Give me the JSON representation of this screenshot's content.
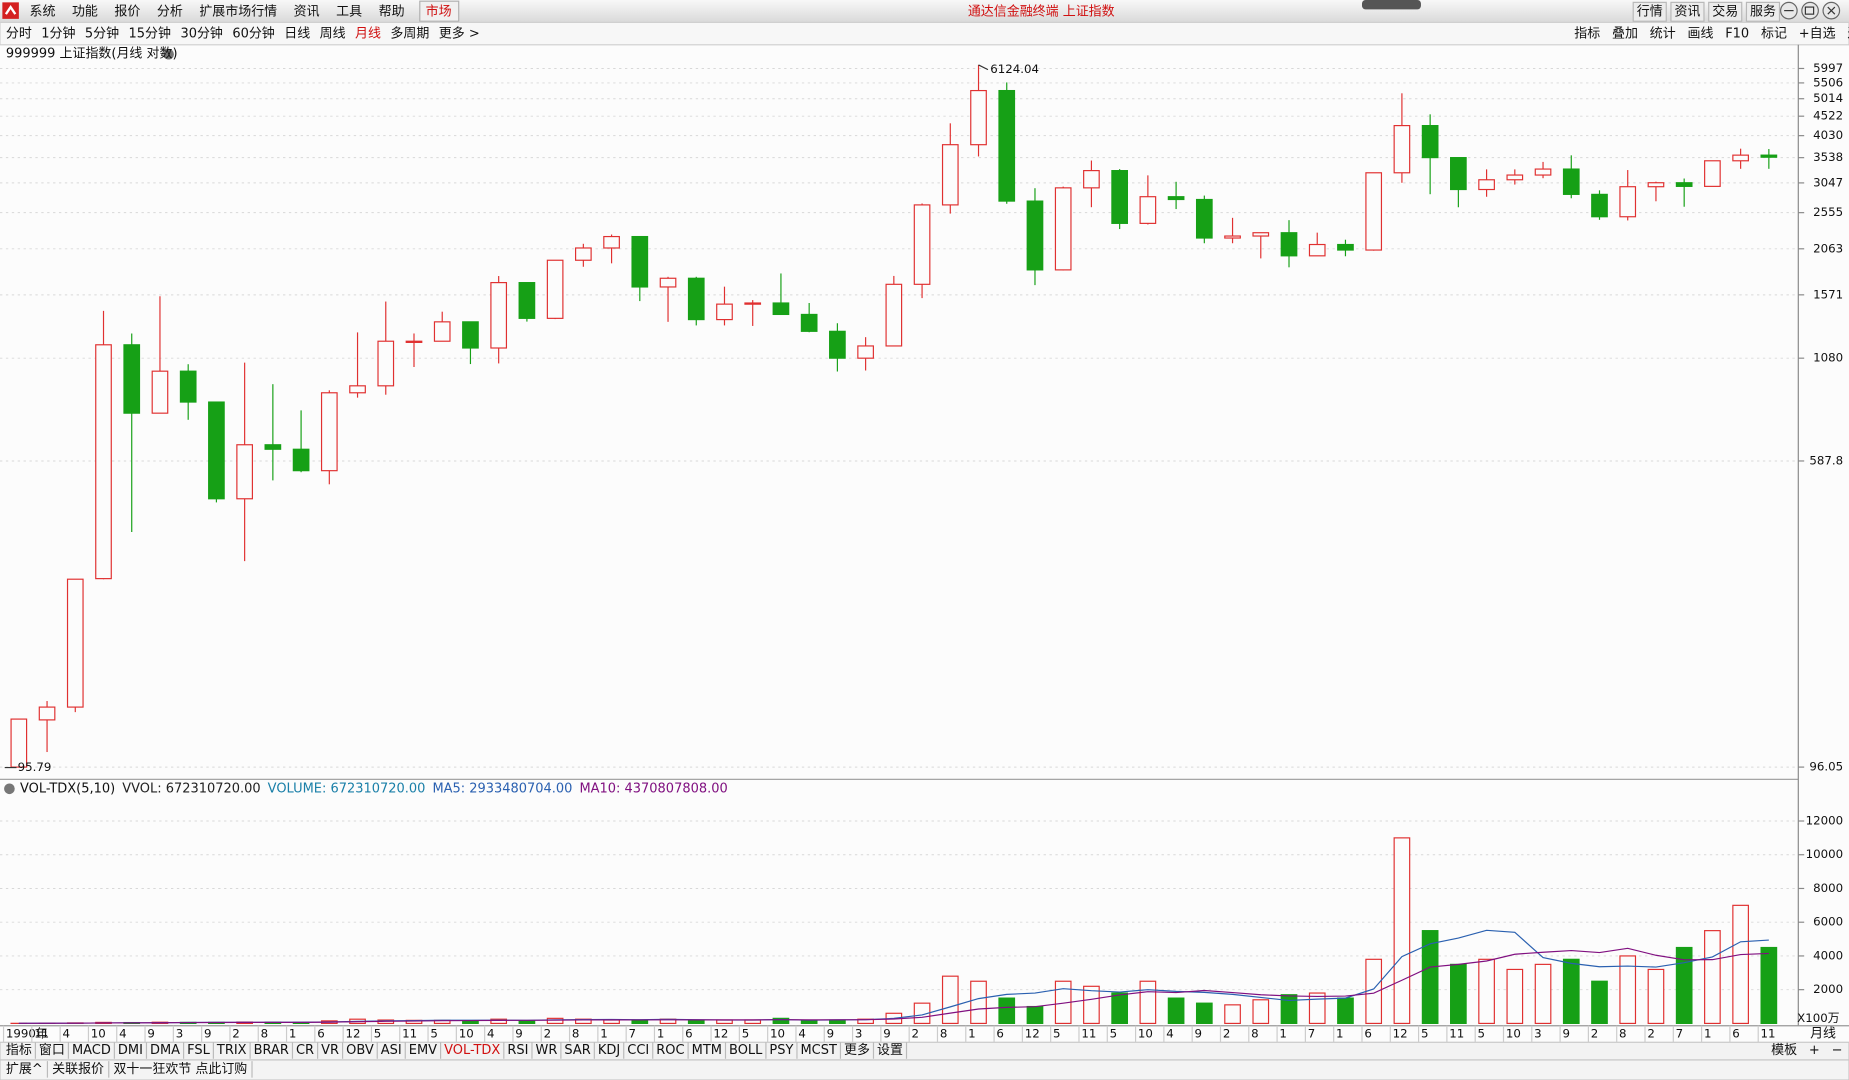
{
  "app": {
    "title": "通达信金融终端 上证指数",
    "menu": [
      "系统",
      "功能",
      "报价",
      "分析",
      "扩展市场行情",
      "资讯",
      "工具",
      "帮助"
    ],
    "market_tab": "市场",
    "top_right": [
      "行情",
      "资讯",
      "交易",
      "服务"
    ],
    "periods": [
      "分时",
      "1分钟",
      "5分钟",
      "15分钟",
      "30分钟",
      "60分钟",
      "日线",
      "周线",
      "月线",
      "多周期",
      "更多 >"
    ],
    "tools": [
      "指标",
      "叠加",
      "统计",
      "画线",
      "F10",
      "标记",
      "+自选",
      "返回"
    ],
    "indicator_tabs": [
      "指标",
      "窗口",
      "MACD",
      "DMI",
      "DMA",
      "FSL",
      "TRIX",
      "BRAR",
      "CR",
      "VR",
      "OBV",
      "ASI",
      "EMV",
      "VOL-TDX",
      "RSI",
      "WR",
      "SAR",
      "KDJ",
      "CCI",
      "ROC",
      "MTM",
      "BOLL",
      "PSY",
      "MCST",
      "更多",
      "设置"
    ],
    "template_tabs": [
      "模板",
      "+",
      "−"
    ],
    "status_tabs": [
      "扩展^",
      "关联报价",
      "双十一狂欢节 点此订购"
    ]
  },
  "chart_data": [
    {
      "type": "candlestick",
      "title": "999999 上证指数(月线 对数)",
      "log_scale": true,
      "grid": true,
      "up_color": "#e03030",
      "down_color": "#16a016",
      "open": [
        96.05,
        127,
        137,
        293,
        1169,
        780,
        1000,
        833,
        470,
        647,
        630,
        555,
        880,
        917,
        1194,
        1194,
        1339,
        1147,
        1689,
        1367,
        1928,
        2073,
        2218,
        1646,
        1733,
        1357,
        1487,
        1497,
        1399,
        1266,
        1080,
        1161,
        1672,
        2675,
        3820,
        5262,
        2736,
        1821,
        2959,
        3277,
        2398,
        2808,
        2762,
        2199,
        2225,
        2269,
        1979,
        2116,
        2048,
        3235,
        4277,
        3539,
        2930,
        3104,
        3192,
        3307,
        2847,
        2494,
        2979,
        3050,
        2985,
        3473,
        3591
      ],
      "high": [
        127.61,
        142,
        292,
        1429,
        1250,
        1558,
        1042,
        834,
        1052,
        926,
        793,
        893,
        1258,
        1510,
        1250,
        1422,
        1340,
        1756,
        1690,
        1928,
        2125,
        2245,
        2220,
        1748,
        1748,
        1649,
        1523,
        1783,
        1497,
        1328,
        1223,
        1757,
        2698,
        4335,
        6124.04,
        5522,
        2953,
        2981,
        3478,
        3306,
        3186,
        3067,
        2827,
        2478,
        2262,
        2444,
        2270,
        2177,
        3239,
        5178,
        4572,
        3539,
        3301,
        3301,
        3450,
        3587,
        2916,
        3288,
        3069,
        3127,
        3474,
        3731,
        3723
      ],
      "low": [
        95.79,
        105,
        133,
        292,
        386,
        780,
        750,
        460,
        325,
        524,
        550,
        512,
        855,
        870,
        1025,
        1200,
        1043,
        1047,
        1341,
        1361,
        1855,
        1893,
        1514,
        1339,
        1311,
        1311,
        1307,
        1399,
        1259,
        998,
        1004,
        1162,
        1541,
        2541,
        3563,
        2693,
        1664,
        1814,
        2639,
        2319,
        2382,
        2610,
        2132,
        2132,
        1949,
        1849,
        1990,
        1974,
        2040,
        3049,
        2850,
        2638,
        2807,
        3017,
        3133,
        2782,
        2449,
        2440,
        2733,
        2646,
        2984,
        3312,
        3312
      ],
      "close": [
        127.61,
        137,
        292,
        1169,
        780,
        1000,
        833,
        470,
        647,
        630,
        555,
        880,
        917,
        1194,
        1194,
        1339,
        1147,
        1689,
        1367,
        1928,
        2073,
        2218,
        1646,
        1733,
        1357,
        1487,
        1497,
        1399,
        1266,
        1080,
        1161,
        1672,
        2675,
        3820,
        5262,
        2736,
        1821,
        2959,
        3277,
        2398,
        2808,
        2762,
        2199,
        2225,
        2269,
        1979,
        2116,
        2048,
        3235,
        4277,
        3539,
        2930,
        3104,
        3192,
        3307,
        2847,
        2494,
        2979,
        3050,
        2985,
        3473,
        3591,
        3547
      ],
      "ylim": [
        95.79,
        6570
      ],
      "yticks": [
        96.05,
        587.8,
        1080,
        1571,
        2063,
        2555,
        3047,
        3538,
        4030,
        4522,
        5014,
        5506,
        5997
      ],
      "max_label": 6124.04,
      "min_label": 95.79,
      "x_labels": [
        "1990年",
        "11",
        "4",
        "10",
        "4",
        "9",
        "3",
        "9",
        "2",
        "8",
        "1",
        "6",
        "12",
        "5",
        "11",
        "5",
        "10",
        "4",
        "9",
        "2",
        "8",
        "1",
        "7",
        "1",
        "6",
        "12",
        "5",
        "10",
        "4",
        "9",
        "3",
        "9",
        "2",
        "8",
        "1",
        "6",
        "12",
        "5",
        "11",
        "5",
        "10",
        "4",
        "9",
        "2",
        "8",
        "1",
        "7",
        "1",
        "6",
        "12",
        "5",
        "11",
        "5",
        "10",
        "3",
        "9",
        "2",
        "8",
        "2",
        "7",
        "1",
        "6",
        "11"
      ],
      "period_label": "月线"
    },
    {
      "type": "bar",
      "title": "VOL-TDX(5,10)",
      "readouts": [
        {
          "text": "VVOL: 672310720.00",
          "color": "#222222"
        },
        {
          "text": "VOLUME: 672310720.00",
          "color": "#1a7fa8"
        },
        {
          "text": "MA5: 2933480704.00",
          "color": "#2a60b0"
        },
        {
          "text": "MA10: 4370807808.00",
          "color": "#801080"
        }
      ],
      "values": [
        5,
        10,
        30,
        60,
        50,
        70,
        60,
        60,
        80,
        70,
        60,
        150,
        250,
        200,
        180,
        180,
        150,
        250,
        150,
        300,
        250,
        200,
        200,
        250,
        150,
        200,
        200,
        300,
        150,
        200,
        250,
        600,
        1200,
        2800,
        2500,
        1500,
        1000,
        2500,
        2200,
        1800,
        2500,
        1500,
        1200,
        1100,
        1400,
        1700,
        1800,
        1500,
        3800,
        11000,
        5500,
        3500,
        3800,
        3200,
        3500,
        3800,
        2500,
        4000,
        3200,
        4500,
        5500,
        7000,
        4500
      ],
      "series": [
        {
          "name": "MA5",
          "color": "#2a60b0",
          "values": [
            5,
            8,
            15,
            26,
            31,
            44,
            54,
            60,
            64,
            68,
            68,
            84,
            122,
            152,
            168,
            192,
            192,
            192,
            182,
            212,
            226,
            230,
            220,
            240,
            220,
            200,
            200,
            230,
            190,
            210,
            220,
            300,
            500,
            980,
            1470,
            1720,
            1800,
            2060,
            1940,
            1860,
            2000,
            1900,
            1840,
            1720,
            1540,
            1360,
            1440,
            1500,
            2040,
            3960,
            4720,
            5060,
            5520,
            5400,
            3900,
            3560,
            3360,
            3400,
            3340,
            3600,
            3940,
            4840,
            4940
          ]
        },
        {
          "name": "MA10",
          "color": "#801080",
          "values": [
            5,
            8,
            15,
            26,
            31,
            40,
            48,
            55,
            60,
            60,
            62,
            75,
            100,
            125,
            140,
            160,
            170,
            180,
            185,
            190,
            205,
            210,
            205,
            215,
            210,
            210,
            210,
            220,
            210,
            215,
            220,
            260,
            360,
            610,
            855,
            950,
            990,
            1200,
            1430,
            1690,
            1880,
            1830,
            1950,
            1830,
            1700,
            1630,
            1600,
            1620,
            1790,
            2560,
            3340,
            3500,
            3700,
            4100,
            4220,
            4320,
            4200,
            4450,
            4040,
            3770,
            3780,
            4080,
            4150
          ]
        }
      ],
      "ylim": [
        0,
        14400
      ],
      "yticks": [
        2000,
        4000,
        6000,
        8000,
        10000,
        12000
      ],
      "grid": true,
      "unit_label": "X100万"
    }
  ]
}
